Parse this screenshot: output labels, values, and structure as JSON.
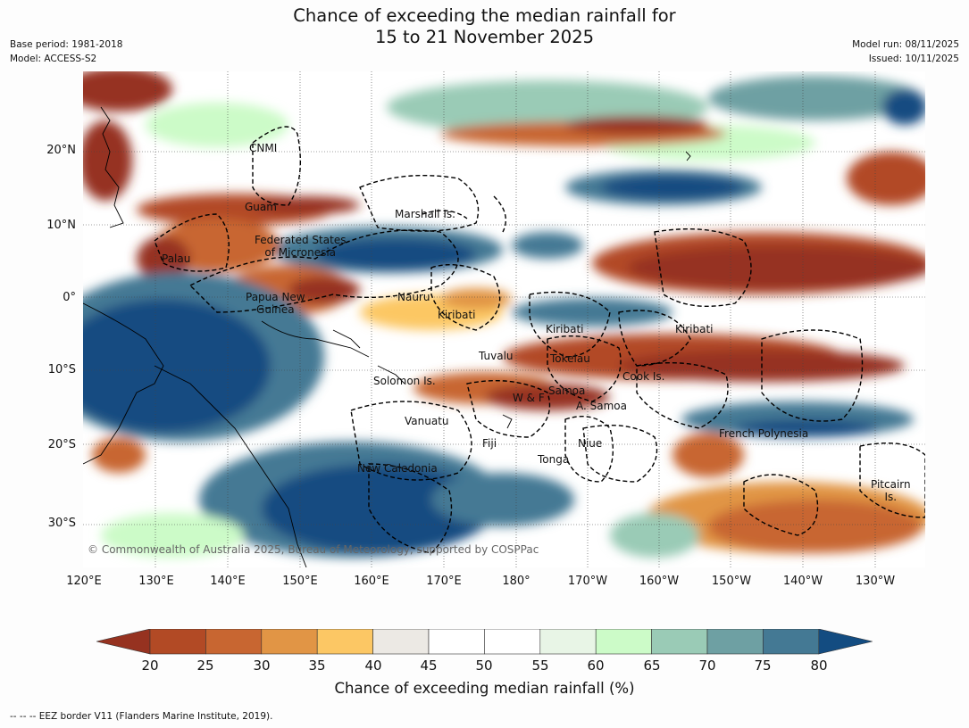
{
  "header": {
    "title_line1": "Chance of exceeding the median rainfall for",
    "title_line2": "15 to 21 November 2025",
    "base_period": "Base period: 1981-2018",
    "model": "Model: ACCESS-S2",
    "model_run": "Model run: 08/11/2025",
    "issued": "Issued: 10/11/2025"
  },
  "axes": {
    "lat_labels": [
      "20°N",
      "10°N",
      "0°",
      "10°S",
      "20°S",
      "30°S"
    ],
    "lon_labels": [
      "120°E",
      "130°E",
      "140°E",
      "150°E",
      "160°E",
      "170°E",
      "180°",
      "170°W",
      "160°W",
      "150°W",
      "140°W",
      "130°W"
    ]
  },
  "regions": {
    "cnmi": "CNMI",
    "guam": "Guam",
    "marshall": "Marshall Is.",
    "fsm_line1": "Federated States",
    "fsm_line2": "of Micronesia",
    "palau": "Palau",
    "png_line1": "Papua New",
    "png_line2": "Guinea",
    "nauru": "Nauru",
    "kiribati_west": "Kiribati",
    "kiribati_central": "Kiribati",
    "kiribati_east": "Kiribati",
    "tuvalu": "Tuvalu",
    "tokelau": "Tokelau",
    "cook": "Cook Is.",
    "solomon": "Solomon Is.",
    "wf": "W & F",
    "samoa": "Samoa",
    "am_samoa": "A. Samoa",
    "vanuatu": "Vanuatu",
    "fiji": "Fiji",
    "niue": "Niue",
    "french_polynesia": "French Polynesia",
    "tonga": "Tonga",
    "new_caledonia": "New Caledonia",
    "pitcairn_line1": "Pitcairn",
    "pitcairn_line2": "Is."
  },
  "copyright": "© Commonwealth of Australia 2025, Bureau of Meteorology, supported by COSPPac",
  "legend": {
    "ticks": [
      "20",
      "25",
      "30",
      "35",
      "40",
      "45",
      "50",
      "55",
      "60",
      "65",
      "70",
      "75",
      "80"
    ],
    "colors": [
      "#963220",
      "#b24a25",
      "#c86631",
      "#e19545",
      "#fcc764",
      "#ece9e4",
      "#ffffff",
      "#ffffff",
      "#e8f5e6",
      "#ccfbc8",
      "#9acbb6",
      "#6ea0a3",
      "#447994",
      "#134c81"
    ],
    "label": "Chance of exceeding median rainfall (%)"
  },
  "footnote": "--  --  -- EEZ border V11 (Flanders Marine Institute, 2019)."
}
